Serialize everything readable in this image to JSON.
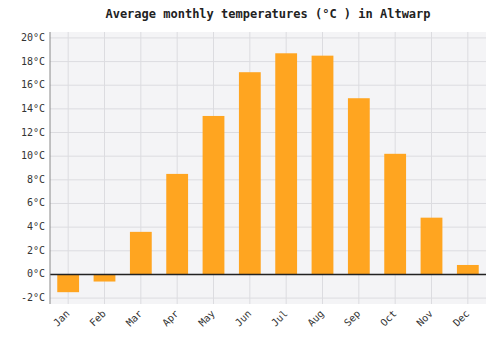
{
  "chart_data": {
    "type": "bar",
    "title": "Average monthly temperatures (°C ) in Altwarp",
    "categories": [
      "Jan",
      "Feb",
      "Mar",
      "Apr",
      "May",
      "Jun",
      "Jul",
      "Aug",
      "Sep",
      "Oct",
      "Nov",
      "Dec"
    ],
    "values": [
      -1.5,
      -0.6,
      3.6,
      8.5,
      13.4,
      17.1,
      18.7,
      18.5,
      14.9,
      10.2,
      4.8,
      0.8
    ],
    "color": "#FFA520",
    "ylim": [
      -2.5,
      20.5
    ],
    "yticks": [
      {
        "value": -2,
        "label": "-2°C"
      },
      {
        "value": 0,
        "label": "0°C"
      },
      {
        "value": 2,
        "label": "2°C"
      },
      {
        "value": 4,
        "label": "4°C"
      },
      {
        "value": 6,
        "label": "6°C"
      },
      {
        "value": 8,
        "label": "8°C"
      },
      {
        "value": 10,
        "label": "10°C"
      },
      {
        "value": 12,
        "label": "12°C"
      },
      {
        "value": 14,
        "label": "14°C"
      },
      {
        "value": 16,
        "label": "16°C"
      },
      {
        "value": 18,
        "label": "18°C"
      },
      {
        "value": 20,
        "label": "20°C"
      }
    ],
    "grid": true
  }
}
